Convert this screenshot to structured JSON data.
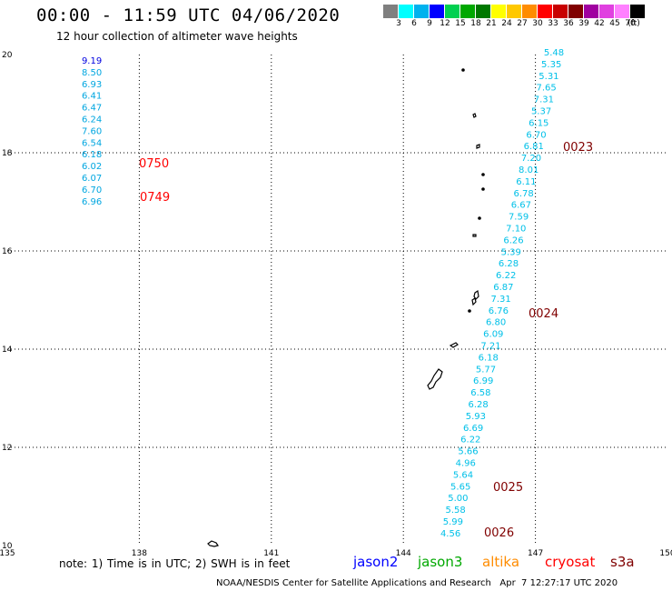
{
  "header": {
    "title": "00:00 - 11:59 UTC 04/06/2020",
    "subtitle": "12 hour collection of altimeter wave heights"
  },
  "colorbar": {
    "labels": [
      "3",
      "6",
      "9",
      "12",
      "15",
      "18",
      "21",
      "24",
      "27",
      "30",
      "33",
      "36",
      "39",
      "42",
      "45",
      "70",
      "(ft)"
    ],
    "colors": [
      "#7f7f7f",
      "#00ffff",
      "#00b2ee",
      "#0000ff",
      "#00d050",
      "#00a800",
      "#007800",
      "#ffff00",
      "#ffc800",
      "#ff8c00",
      "#ff0000",
      "#c80000",
      "#800000",
      "#a000a0",
      "#e040e0",
      "#ff80ff",
      "#000000"
    ]
  },
  "map": {
    "lon_range": [
      135,
      150
    ],
    "lat_range": [
      10,
      20
    ],
    "lon_ticks": [
      "135",
      "138",
      "141",
      "144",
      "147",
      "150"
    ],
    "lat_ticks": [
      "20",
      "18",
      "16",
      "14",
      "12",
      "10"
    ],
    "grid": true,
    "tracks": [
      {
        "color": "#00a6e0",
        "lon": 137.15,
        "values": [
          "9.19",
          "8.50",
          "6.93",
          "6.41",
          "6.47",
          "6.24",
          "7.60",
          "6.54",
          "6.18",
          "6.02",
          "6.07",
          "6.70",
          "6.96"
        ],
        "value_colors": [
          "#0000e0"
        ]
      },
      {
        "color": "#00c0e8",
        "lon_start": 147.65,
        "lon_end": 145.3,
        "values": [
          "5.48",
          "5.35",
          "5.31",
          "7.65",
          "7.31",
          "5.37",
          "6.15",
          "6.70",
          "6.81",
          "7.20",
          "8.01",
          "6.11",
          "6.78",
          "6.67",
          "7.59",
          "7.10",
          "6.26",
          "5.39",
          "6.28",
          "6.22",
          "6.87",
          "7.31",
          "6.76",
          "6.80",
          "6.09",
          "7.21",
          "6.18",
          "5.77",
          "6.99",
          "6.58",
          "6.28",
          "5.93",
          "6.69",
          "6.22",
          "5.66",
          "4.96",
          "5.64",
          "5.65",
          "5.00",
          "5.58",
          "5.99",
          "4.56"
        ]
      }
    ],
    "time_labels": [
      {
        "text": "0750",
        "color": "#ff0000"
      },
      {
        "text": "0749",
        "color": "#ff0000"
      },
      {
        "text": "0023",
        "color": "#800000"
      },
      {
        "text": "0024",
        "color": "#800000"
      },
      {
        "text": "0025",
        "color": "#800000"
      },
      {
        "text": "0026",
        "color": "#800000"
      }
    ]
  },
  "footer": {
    "note": "note: 1) Time is in UTC; 2) SWH is in feet",
    "legend": [
      {
        "name": "jason2",
        "color": "#0000ff"
      },
      {
        "name": "jason3",
        "color": "#00a800"
      },
      {
        "name": "altika",
        "color": "#ff8c00"
      },
      {
        "name": "cryosat",
        "color": "#ff0000"
      },
      {
        "name": "s3a",
        "color": "#800000"
      }
    ],
    "credit": "NOAA/NESDIS Center for Satellite Applications and Research   Apr  7 12:27:17 UTC 2020"
  }
}
